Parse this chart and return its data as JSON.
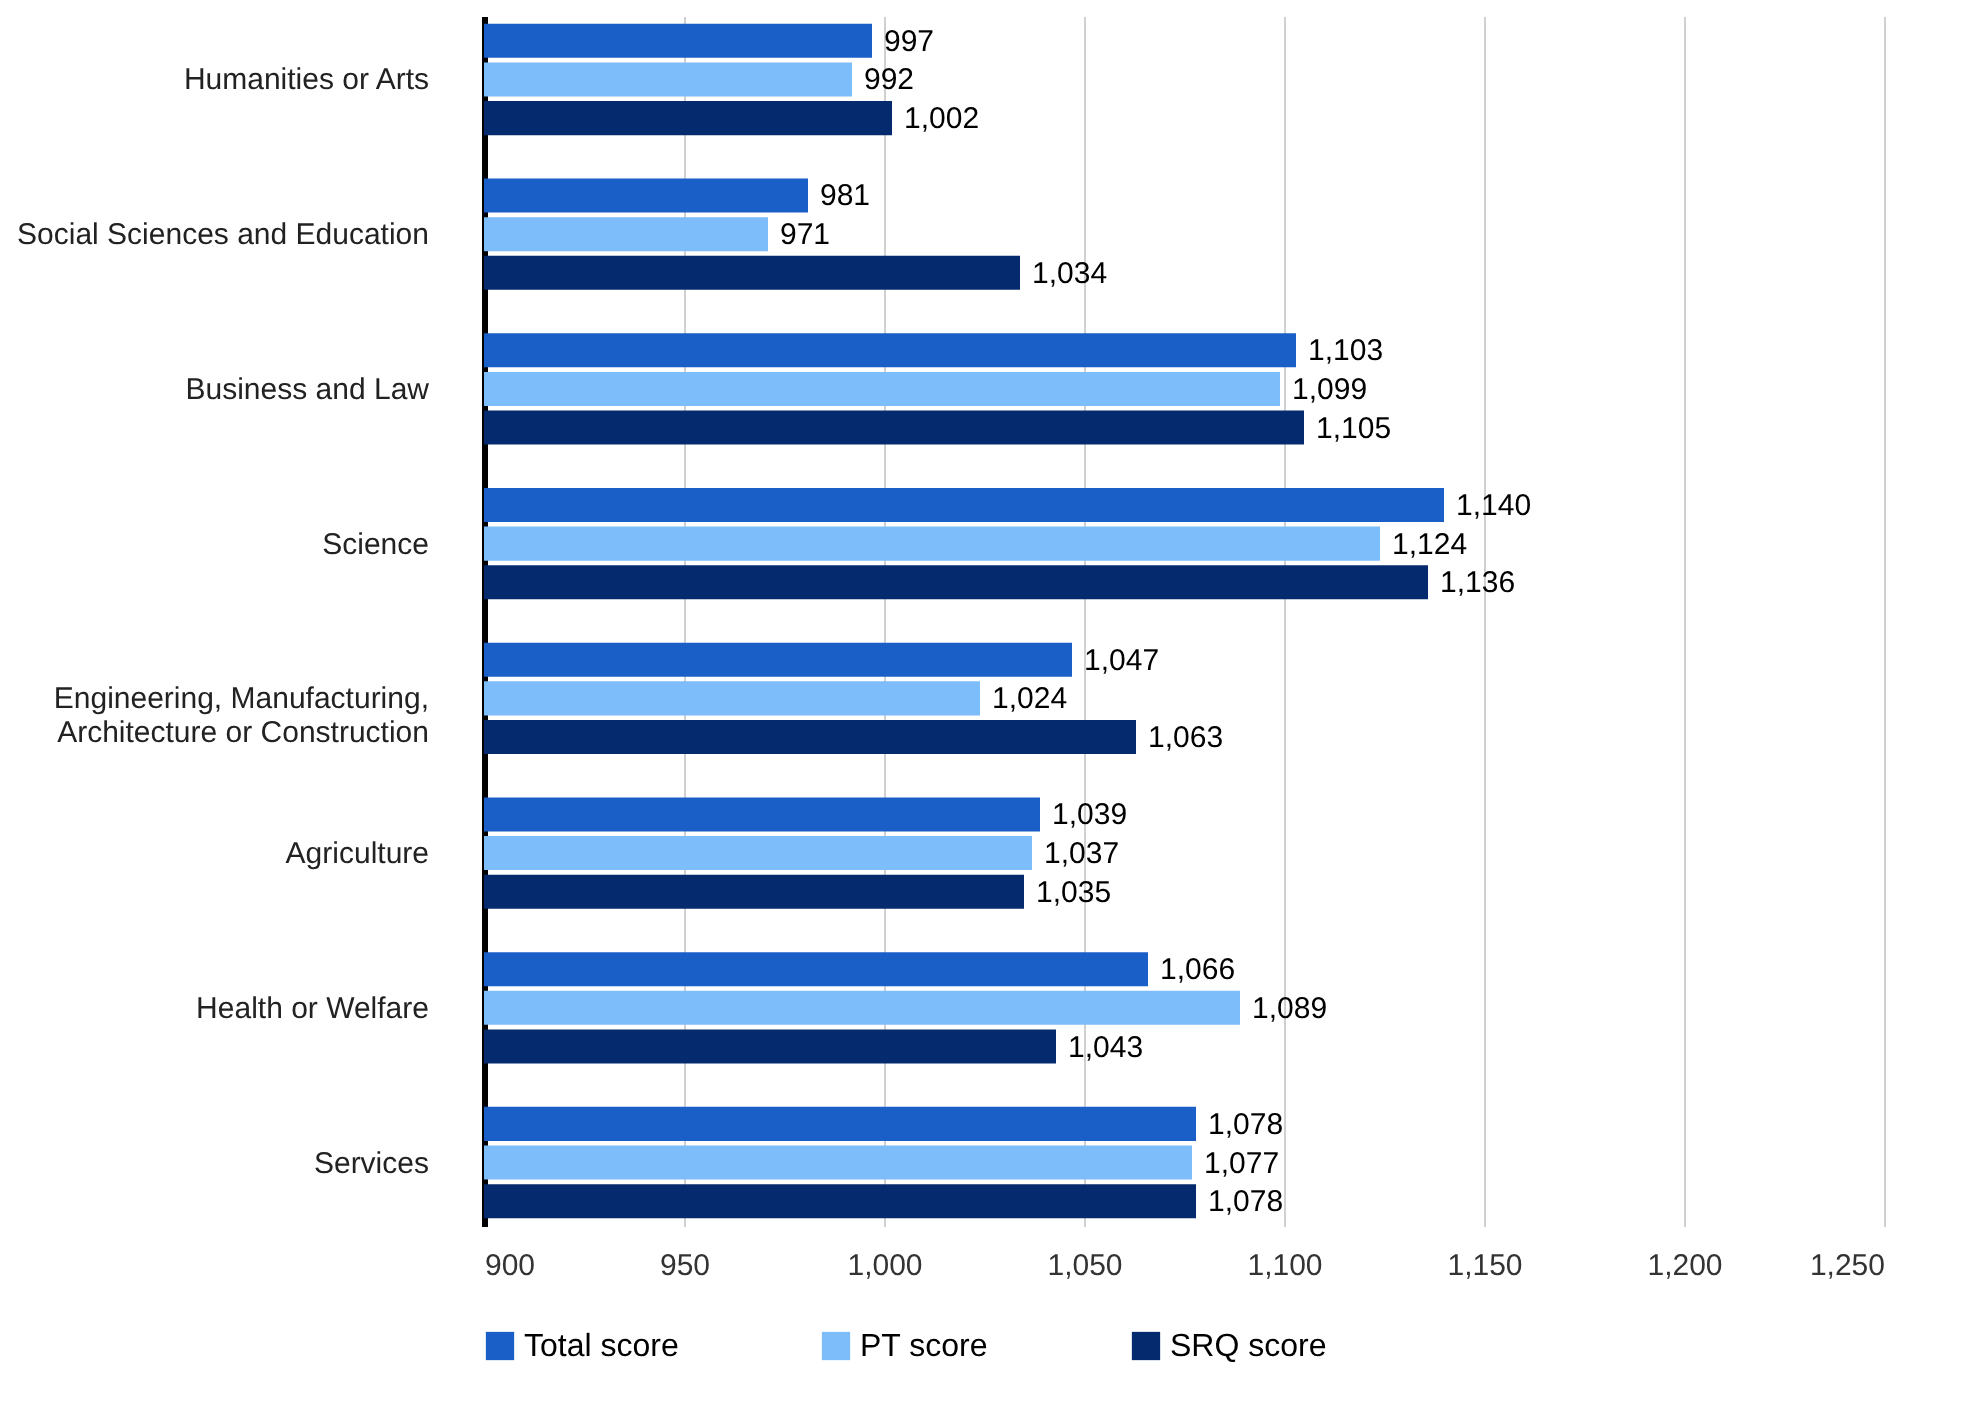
{
  "chart_data": {
    "type": "bar",
    "orientation": "horizontal",
    "categories": [
      "Humanities or Arts",
      "Social Sciences and Education",
      "Business and Law",
      "Science",
      "Engineering, Manufacturing, Architecture or Construction",
      "Agriculture",
      "Health or Welfare",
      "Services"
    ],
    "series": [
      {
        "name": "Total score",
        "color": "#1a5fc8",
        "values": [
          997,
          981,
          1103,
          1140,
          1047,
          1039,
          1066,
          1078
        ],
        "value_labels": [
          "997",
          "981",
          "1,103",
          "1,140",
          "1,047",
          "1,039",
          "1,066",
          "1,078"
        ]
      },
      {
        "name": "PT score",
        "color": "#7dbdfa",
        "values": [
          992,
          971,
          1099,
          1124,
          1024,
          1037,
          1089,
          1077
        ],
        "value_labels": [
          "992",
          "971",
          "1,099",
          "1,124",
          "1,024",
          "1,037",
          "1,089",
          "1,077"
        ]
      },
      {
        "name": "SRQ score",
        "color": "#062a6e",
        "values": [
          1002,
          1034,
          1105,
          1136,
          1063,
          1035,
          1043,
          1078
        ],
        "value_labels": [
          "1,002",
          "1,034",
          "1,105",
          "1,136",
          "1,063",
          "1,035",
          "1,043",
          "1,078"
        ]
      }
    ],
    "xlim": [
      900,
      1250
    ],
    "xticks": [
      900,
      950,
      {
        "value": 1000,
        "label": "1,000"
      },
      {
        "value": 1050,
        "label": "1,050"
      },
      {
        "value": 1100,
        "label": "1,100"
      },
      {
        "value": 1150,
        "label": "1,150"
      },
      {
        "value": 1200,
        "label": "1,200"
      },
      {
        "value": 1250,
        "label": "1,250"
      }
    ],
    "grid": "x",
    "legend": "bottom"
  }
}
